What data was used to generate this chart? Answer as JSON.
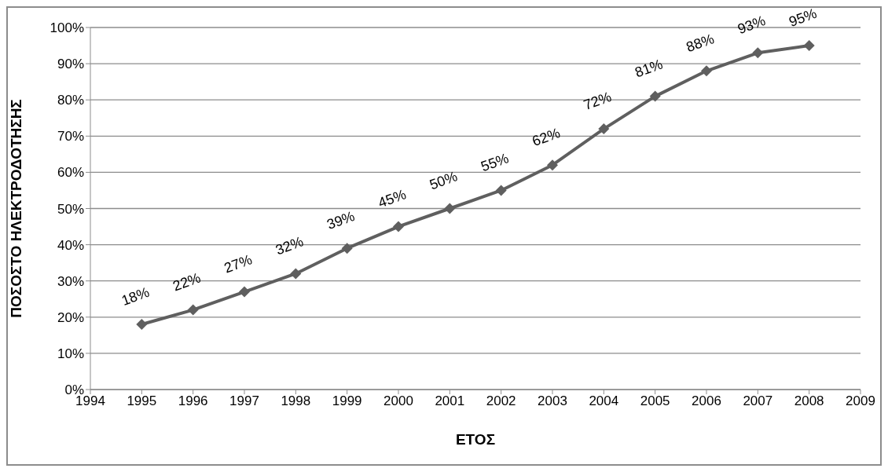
{
  "chart_data": {
    "type": "line",
    "xlabel": "ΕΤΟΣ",
    "ylabel": "ΠΟΣΟΣΤΟ ΗΛΕΚΤΡΟΔΟΤΗΣΗΣ",
    "x": [
      1995,
      1996,
      1997,
      1998,
      1999,
      2000,
      2001,
      2002,
      2003,
      2004,
      2005,
      2006,
      2007,
      2008
    ],
    "series": [
      {
        "color": "#5f5f5f",
        "values": [
          18,
          22,
          27,
          32,
          39,
          45,
          50,
          55,
          62,
          72,
          81,
          88,
          93,
          95
        ],
        "value_labels": [
          "18%",
          "22%",
          "27%",
          "32%",
          "39%",
          "45%",
          "50%",
          "55%",
          "62%",
          "72%",
          "81%",
          "88%",
          "93%",
          "95%"
        ]
      }
    ],
    "xlim": [
      1994,
      2009
    ],
    "xticks": [
      1994,
      1995,
      1996,
      1997,
      1998,
      1999,
      2000,
      2001,
      2002,
      2003,
      2004,
      2005,
      2006,
      2007,
      2008,
      2009
    ],
    "ylim": [
      0,
      100
    ],
    "yticks": [
      {
        "value": 0,
        "label": "0%"
      },
      {
        "value": 10,
        "label": "10%"
      },
      {
        "value": 20,
        "label": "20%"
      },
      {
        "value": 30,
        "label": "30%"
      },
      {
        "value": 40,
        "label": "40%"
      },
      {
        "value": 50,
        "label": "50%"
      },
      {
        "value": 60,
        "label": "60%"
      },
      {
        "value": 70,
        "label": "70%"
      },
      {
        "value": 80,
        "label": "80%"
      },
      {
        "value": 90,
        "label": "90%"
      },
      {
        "value": 100,
        "label": "100%"
      }
    ],
    "grid": "y",
    "marker": "diamond",
    "legend": false
  }
}
